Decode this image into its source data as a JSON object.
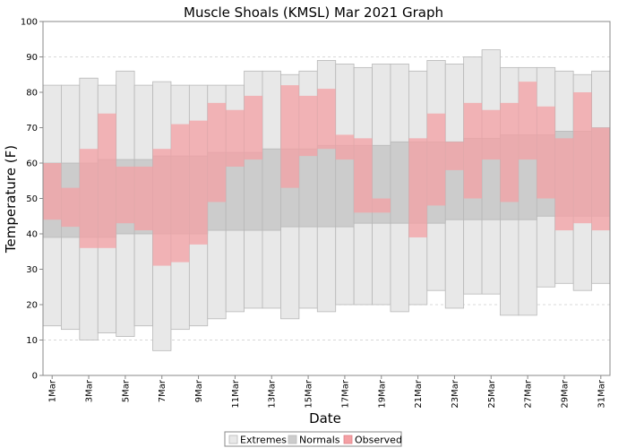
{
  "chart_data": {
    "type": "bar",
    "title": "Muscle Shoals (KMSL) Mar 2021 Graph",
    "xlabel": "Date",
    "ylabel": "Temperature (F)",
    "ylim": [
      0,
      100
    ],
    "yticks": [
      0,
      10,
      20,
      30,
      40,
      50,
      60,
      70,
      80,
      90,
      100
    ],
    "grid": true,
    "legend_position": "bottom-center",
    "x": [
      "1Mar",
      "2Mar",
      "3Mar",
      "4Mar",
      "5Mar",
      "6Mar",
      "7Mar",
      "8Mar",
      "9Mar",
      "10Mar",
      "11Mar",
      "12Mar",
      "13Mar",
      "14Mar",
      "15Mar",
      "16Mar",
      "17Mar",
      "18Mar",
      "19Mar",
      "20Mar",
      "21Mar",
      "22Mar",
      "23Mar",
      "24Mar",
      "25Mar",
      "26Mar",
      "27Mar",
      "28Mar",
      "29Mar",
      "30Mar",
      "31Mar"
    ],
    "xtick_labels": [
      "1Mar",
      "3Mar",
      "5Mar",
      "7Mar",
      "9Mar",
      "11Mar",
      "13Mar",
      "15Mar",
      "17Mar",
      "19Mar",
      "21Mar",
      "23Mar",
      "25Mar",
      "27Mar",
      "29Mar",
      "31Mar"
    ],
    "series": [
      {
        "name": "Extremes",
        "color": "#e8e8e8",
        "low": [
          14,
          13,
          10,
          12,
          11,
          14,
          7,
          13,
          14,
          16,
          18,
          19,
          19,
          16,
          19,
          18,
          20,
          20,
          20,
          18,
          20,
          24,
          19,
          23,
          23,
          17,
          17,
          25,
          26,
          24,
          26
        ],
        "high": [
          82,
          82,
          84,
          82,
          86,
          82,
          83,
          82,
          82,
          82,
          82,
          86,
          86,
          85,
          86,
          89,
          88,
          87,
          88,
          88,
          86,
          89,
          88,
          90,
          92,
          87,
          87,
          87,
          86,
          85,
          86
        ]
      },
      {
        "name": "Normals",
        "color": "#cccccc",
        "low": [
          39,
          39,
          39,
          39,
          40,
          40,
          40,
          40,
          40,
          41,
          41,
          41,
          41,
          42,
          42,
          42,
          42,
          43,
          43,
          43,
          43,
          43,
          44,
          44,
          44,
          44,
          44,
          45,
          45,
          45,
          45
        ],
        "high": [
          60,
          60,
          60,
          61,
          61,
          61,
          62,
          62,
          62,
          63,
          63,
          63,
          64,
          64,
          64,
          65,
          65,
          65,
          65,
          66,
          66,
          66,
          66,
          67,
          67,
          68,
          68,
          68,
          69,
          69,
          70
        ]
      },
      {
        "name": "Observed",
        "color": "#f4a0a4",
        "low": [
          44,
          42,
          36,
          36,
          43,
          41,
          31,
          32,
          37,
          49,
          59,
          61,
          null,
          53,
          62,
          64,
          61,
          46,
          46,
          66,
          39,
          48,
          58,
          50,
          61,
          49,
          61,
          50,
          41,
          43,
          41
        ],
        "high": [
          60,
          53,
          64,
          74,
          59,
          59,
          64,
          71,
          72,
          77,
          75,
          79,
          null,
          82,
          79,
          81,
          68,
          67,
          50,
          66,
          67,
          74,
          66,
          77,
          75,
          77,
          83,
          76,
          67,
          80,
          70
        ]
      }
    ]
  }
}
